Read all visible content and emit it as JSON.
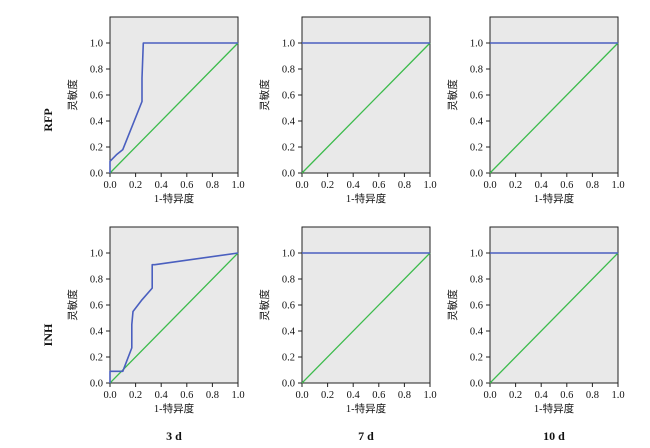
{
  "figure": {
    "row_labels": [
      "RFP",
      "INH"
    ],
    "col_labels": [
      "3 d",
      "7 d",
      "10 d"
    ],
    "colors": {
      "plot_bg": "#e9e9e9",
      "frame": "#222222",
      "roc": "#4a5fbf",
      "reference": "#3cbb4c"
    }
  },
  "chart_data": [
    {
      "type": "line",
      "row": 0,
      "col": 0,
      "row_label": "RFP",
      "col_label": "3 d",
      "xlabel": "1-特异度",
      "ylabel": "灵敏度",
      "xlim": [
        0,
        1
      ],
      "ylim": [
        0,
        1.2
      ],
      "grid": false,
      "x_ticks": [
        "0.0",
        "0.2",
        "0.4",
        "0.6",
        "0.8",
        "1.0"
      ],
      "y_ticks": [
        "0.0",
        "0.2",
        "0.4",
        "0.6",
        "0.8",
        "1.0"
      ],
      "series": [
        {
          "role": "roc",
          "x": [
            0,
            0,
            0.05,
            0.1,
            0.25,
            0.25,
            0.26,
            1.0
          ],
          "y": [
            0,
            0.09,
            0.14,
            0.18,
            0.55,
            0.73,
            1.0,
            1.0
          ]
        },
        {
          "role": "reference",
          "x": [
            0,
            1
          ],
          "y": [
            0,
            1
          ]
        }
      ]
    },
    {
      "type": "line",
      "row": 0,
      "col": 1,
      "row_label": "RFP",
      "col_label": "7 d",
      "xlabel": "1-特异度",
      "ylabel": "灵敏度",
      "xlim": [
        0,
        1
      ],
      "ylim": [
        0,
        1.2
      ],
      "grid": false,
      "x_ticks": [
        "0.0",
        "0.2",
        "0.4",
        "0.6",
        "0.8",
        "1.0"
      ],
      "y_ticks": [
        "0.0",
        "0.2",
        "0.4",
        "0.6",
        "0.8",
        "1.0"
      ],
      "series": [
        {
          "role": "roc",
          "x": [
            0,
            1
          ],
          "y": [
            1,
            1
          ]
        },
        {
          "role": "reference",
          "x": [
            0,
            1
          ],
          "y": [
            0,
            1
          ]
        }
      ]
    },
    {
      "type": "line",
      "row": 0,
      "col": 2,
      "row_label": "RFP",
      "col_label": "10 d",
      "xlabel": "1-特异度",
      "ylabel": "灵敏度",
      "xlim": [
        0,
        1
      ],
      "ylim": [
        0,
        1.2
      ],
      "grid": false,
      "x_ticks": [
        "0.0",
        "0.2",
        "0.4",
        "0.6",
        "0.8",
        "1.0"
      ],
      "y_ticks": [
        "0.0",
        "0.2",
        "0.4",
        "0.6",
        "0.8",
        "1.0"
      ],
      "series": [
        {
          "role": "roc",
          "x": [
            0,
            1
          ],
          "y": [
            1,
            1
          ]
        },
        {
          "role": "reference",
          "x": [
            0,
            1
          ],
          "y": [
            0,
            1
          ]
        }
      ]
    },
    {
      "type": "line",
      "row": 1,
      "col": 0,
      "row_label": "INH",
      "col_label": "3 d",
      "xlabel": "1-特异度",
      "ylabel": "灵敏度",
      "xlim": [
        0,
        1
      ],
      "ylim": [
        0,
        1.2
      ],
      "grid": false,
      "x_ticks": [
        "0.0",
        "0.2",
        "0.4",
        "0.6",
        "0.8",
        "1.0"
      ],
      "y_ticks": [
        "0.0",
        "0.2",
        "0.4",
        "0.6",
        "0.8",
        "1.0"
      ],
      "series": [
        {
          "role": "roc",
          "x": [
            0,
            0,
            0.1,
            0.17,
            0.17,
            0.18,
            0.25,
            0.33,
            0.33,
            0.35,
            1.0
          ],
          "y": [
            0,
            0.09,
            0.09,
            0.27,
            0.45,
            0.55,
            0.64,
            0.73,
            0.91,
            0.91,
            1.0
          ]
        },
        {
          "role": "reference",
          "x": [
            0,
            1
          ],
          "y": [
            0,
            1
          ]
        }
      ]
    },
    {
      "type": "line",
      "row": 1,
      "col": 1,
      "row_label": "INH",
      "col_label": "7 d",
      "xlabel": "1-特异度",
      "ylabel": "灵敏度",
      "xlim": [
        0,
        1
      ],
      "ylim": [
        0,
        1.2
      ],
      "grid": false,
      "x_ticks": [
        "0.0",
        "0.2",
        "0.4",
        "0.6",
        "0.8",
        "1.0"
      ],
      "y_ticks": [
        "0.0",
        "0.2",
        "0.4",
        "0.6",
        "0.8",
        "1.0"
      ],
      "series": [
        {
          "role": "roc",
          "x": [
            0,
            1
          ],
          "y": [
            1,
            1
          ]
        },
        {
          "role": "reference",
          "x": [
            0,
            1
          ],
          "y": [
            0,
            1
          ]
        }
      ]
    },
    {
      "type": "line",
      "row": 1,
      "col": 2,
      "row_label": "INH",
      "col_label": "10 d",
      "xlabel": "1-特异度",
      "ylabel": "灵敏度",
      "xlim": [
        0,
        1
      ],
      "ylim": [
        0,
        1.2
      ],
      "grid": false,
      "x_ticks": [
        "0.0",
        "0.2",
        "0.4",
        "0.6",
        "0.8",
        "1.0"
      ],
      "y_ticks": [
        "0.0",
        "0.2",
        "0.4",
        "0.6",
        "0.8",
        "1.0"
      ],
      "series": [
        {
          "role": "roc",
          "x": [
            0,
            1
          ],
          "y": [
            1,
            1
          ]
        },
        {
          "role": "reference",
          "x": [
            0,
            1
          ],
          "y": [
            0,
            1
          ]
        }
      ]
    }
  ]
}
